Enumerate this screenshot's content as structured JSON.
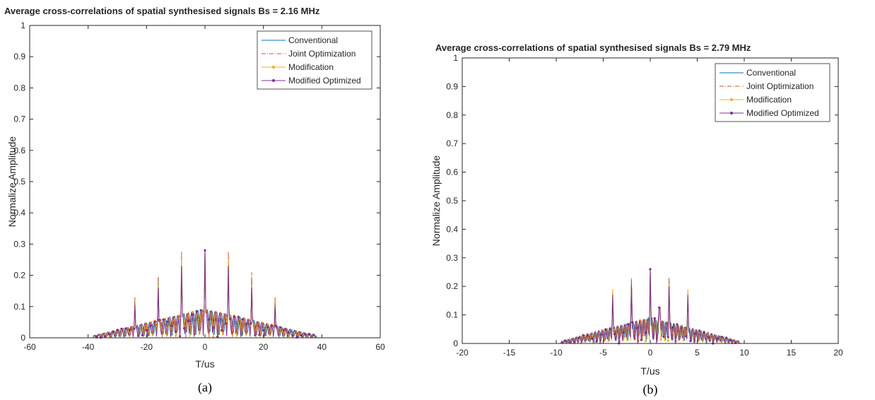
{
  "colors": {
    "conventional": "#0072bd",
    "joint": "#d95319",
    "modification": "#edb120",
    "modified_optimized": "#7e2f8e"
  },
  "chart_data": [
    {
      "type": "line",
      "title": "Average cross-correlations of spatial synthesised signals Bs = 2.16 MHz",
      "xlabel": "T/us",
      "ylabel": "Normalize Amplitude",
      "caption": "(a)",
      "xlim": [
        -60,
        60
      ],
      "ylim": [
        0,
        1
      ],
      "xticks": [
        -60,
        -40,
        -20,
        0,
        20,
        40,
        60
      ],
      "yticks": [
        0,
        0.1,
        0.2,
        0.3,
        0.4,
        0.5,
        0.6,
        0.7,
        0.8,
        0.9,
        1
      ],
      "legend_position": "top-right",
      "series": [
        {
          "name": "Conventional",
          "style": "solid",
          "peaks": [
            [
              -24,
              0.11
            ],
            [
              -16,
              0.18
            ],
            [
              -8,
              0.24
            ],
            [
              0,
              0.28
            ],
            [
              8,
              0.24
            ],
            [
              16,
              0.18
            ],
            [
              24,
              0.11
            ]
          ]
        },
        {
          "name": "Joint Optimization",
          "style": "dashdot",
          "peaks": [
            [
              -24,
              0.13
            ],
            [
              -16,
              0.2
            ],
            [
              -8,
              0.275
            ],
            [
              0,
              0.28
            ],
            [
              8,
              0.275
            ],
            [
              16,
              0.21
            ],
            [
              24,
              0.13
            ]
          ]
        },
        {
          "name": "Modification",
          "style": "marker",
          "peaks": [
            [
              -24,
              0.1
            ],
            [
              -16,
              0.17
            ],
            [
              -8,
              0.25
            ],
            [
              0,
              0.28
            ],
            [
              8,
              0.25
            ],
            [
              16,
              0.17
            ],
            [
              24,
              0.1
            ]
          ]
        },
        {
          "name": "Modified Optimized",
          "style": "marker",
          "peaks": [
            [
              -24,
              0.1
            ],
            [
              -16,
              0.16
            ],
            [
              -8,
              0.23
            ],
            [
              0,
              0.28
            ],
            [
              8,
              0.23
            ],
            [
              16,
              0.16
            ],
            [
              24,
              0.1
            ]
          ]
        }
      ],
      "extent": [
        -38,
        38
      ]
    },
    {
      "type": "line",
      "title": "Average cross-correlations of spatial synthesised signals Bs = 2.79 MHz",
      "xlabel": "T/us",
      "ylabel": "Normalize Amplitude",
      "caption": "(b)",
      "xlim": [
        -20,
        20
      ],
      "ylim": [
        0,
        1
      ],
      "xticks": [
        -20,
        -15,
        -10,
        -5,
        0,
        5,
        10,
        15,
        20
      ],
      "yticks": [
        0,
        0.1,
        0.2,
        0.3,
        0.4,
        0.5,
        0.6,
        0.7,
        0.8,
        0.9,
        1
      ],
      "legend_position": "top-right",
      "series": [
        {
          "name": "Conventional",
          "style": "solid",
          "peaks": [
            [
              -4,
              0.17
            ],
            [
              -2,
              0.22
            ],
            [
              0,
              0.25
            ],
            [
              1,
              0.23
            ],
            [
              2,
              0.22
            ],
            [
              4,
              0.17
            ]
          ]
        },
        {
          "name": "Joint Optimization",
          "style": "dashdot",
          "peaks": [
            [
              -4,
              0.18
            ],
            [
              -2,
              0.23
            ],
            [
              0,
              0.26
            ],
            [
              1,
              0.24
            ],
            [
              2,
              0.23
            ],
            [
              4,
              0.18
            ]
          ]
        },
        {
          "name": "Modification",
          "style": "marker",
          "peaks": [
            [
              -4,
              0.19
            ],
            [
              -2,
              0.2
            ],
            [
              0,
              0.26
            ],
            [
              1,
              0.24
            ],
            [
              2,
              0.21
            ],
            [
              4,
              0.19
            ]
          ]
        },
        {
          "name": "Modified Optimized",
          "style": "marker",
          "peaks": [
            [
              -4,
              0.17
            ],
            [
              -2,
              0.2
            ],
            [
              0,
              0.26
            ],
            [
              1,
              0.24
            ],
            [
              2,
              0.2
            ],
            [
              4,
              0.17
            ]
          ]
        }
      ],
      "extent": [
        -9.5,
        9.5
      ]
    }
  ]
}
